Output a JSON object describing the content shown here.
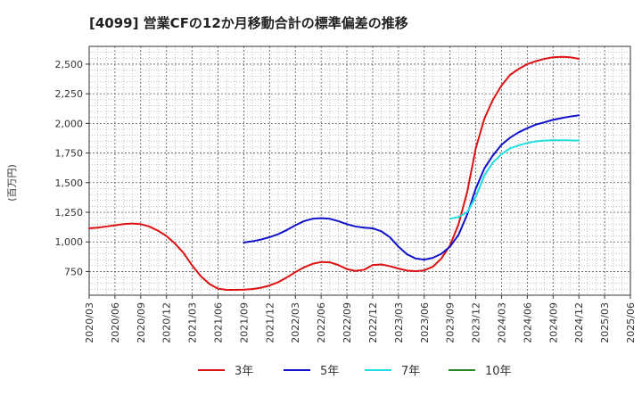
{
  "chart_data": {
    "type": "line",
    "title": "[4099]  営業CFの12か月移動合計の標準偏差の推移",
    "ylabel": "(百万円)",
    "xlabel": "",
    "ylim": [
      550,
      2650
    ],
    "yticks": [
      750,
      1000,
      1250,
      1500,
      1750,
      2000,
      2250,
      2500
    ],
    "ytick_labels": [
      "750",
      "1,000",
      "1,250",
      "1,500",
      "1,750",
      "2,000",
      "2,250",
      "2,500"
    ],
    "xlim": [
      "2020/03",
      "2025/06"
    ],
    "xtick_labels": [
      "2020/03",
      "2020/06",
      "2020/09",
      "2020/12",
      "2021/03",
      "2021/06",
      "2021/09",
      "2021/12",
      "2022/03",
      "2022/06",
      "2022/09",
      "2022/12",
      "2023/03",
      "2023/06",
      "2023/09",
      "2023/12",
      "2024/03",
      "2024/06",
      "2024/09",
      "2024/12",
      "2025/03",
      "2025/06"
    ],
    "grid": true,
    "legend_position": "bottom",
    "series": [
      {
        "name": "3年",
        "color": "#dd1111",
        "x": [
          "2020/03",
          "2020/04",
          "2020/05",
          "2020/06",
          "2020/07",
          "2020/08",
          "2020/09",
          "2020/10",
          "2020/11",
          "2020/12",
          "2021/01",
          "2021/02",
          "2021/03",
          "2021/04",
          "2021/05",
          "2021/06",
          "2021/07",
          "2021/08",
          "2021/09",
          "2021/10",
          "2021/11",
          "2021/12",
          "2022/01",
          "2022/02",
          "2022/03",
          "2022/04",
          "2022/05",
          "2022/06",
          "2022/07",
          "2022/08",
          "2022/09",
          "2022/10",
          "2022/11",
          "2022/12",
          "2023/01",
          "2023/02",
          "2023/03",
          "2023/04",
          "2023/05",
          "2023/06",
          "2023/07",
          "2023/08",
          "2023/09",
          "2023/10",
          "2023/11",
          "2023/12",
          "2024/01",
          "2024/02",
          "2024/03",
          "2024/04",
          "2024/05",
          "2024/06",
          "2024/07",
          "2024/08",
          "2024/09",
          "2024/10",
          "2024/11",
          "2024/12"
        ],
        "values": [
          1115,
          1120,
          1130,
          1140,
          1150,
          1155,
          1150,
          1130,
          1095,
          1050,
          985,
          905,
          800,
          710,
          645,
          605,
          595,
          595,
          597,
          602,
          613,
          632,
          660,
          700,
          745,
          785,
          815,
          830,
          828,
          805,
          770,
          755,
          765,
          805,
          810,
          795,
          775,
          758,
          752,
          760,
          790,
          860,
          970,
          1150,
          1420,
          1790,
          2040,
          2200,
          2320,
          2410,
          2460,
          2500,
          2525,
          2545,
          2558,
          2562,
          2558,
          2545
        ]
      },
      {
        "name": "5年",
        "color": "#1111cc",
        "x": [
          "2021/09",
          "2021/10",
          "2021/11",
          "2021/12",
          "2022/01",
          "2022/02",
          "2022/03",
          "2022/04",
          "2022/05",
          "2022/06",
          "2022/07",
          "2022/08",
          "2022/09",
          "2022/10",
          "2022/11",
          "2022/12",
          "2023/01",
          "2023/02",
          "2023/03",
          "2023/04",
          "2023/05",
          "2023/06",
          "2023/07",
          "2023/08",
          "2023/09",
          "2023/10",
          "2023/11",
          "2023/12",
          "2024/01",
          "2024/02",
          "2024/03",
          "2024/04",
          "2024/05",
          "2024/06",
          "2024/07",
          "2024/08",
          "2024/09",
          "2024/10",
          "2024/11",
          "2024/12"
        ],
        "values": [
          995,
          1005,
          1020,
          1040,
          1065,
          1100,
          1140,
          1175,
          1195,
          1200,
          1195,
          1175,
          1150,
          1130,
          1120,
          1115,
          1090,
          1040,
          960,
          895,
          860,
          850,
          865,
          900,
          960,
          1060,
          1230,
          1450,
          1620,
          1730,
          1820,
          1880,
          1925,
          1960,
          1990,
          2010,
          2030,
          2045,
          2058,
          2068
        ]
      },
      {
        "name": "7年",
        "color": "#22dddd",
        "x": [
          "2023/09",
          "2023/10",
          "2023/11",
          "2023/12",
          "2024/01",
          "2024/02",
          "2024/03",
          "2024/04",
          "2024/05",
          "2024/06",
          "2024/07",
          "2024/08",
          "2024/09",
          "2024/10",
          "2024/11",
          "2024/12"
        ],
        "values": [
          1195,
          1210,
          1250,
          1380,
          1560,
          1670,
          1740,
          1790,
          1815,
          1835,
          1848,
          1855,
          1858,
          1858,
          1857,
          1855
        ]
      },
      {
        "name": "10年",
        "color": "#228822",
        "x": [],
        "values": []
      }
    ]
  }
}
